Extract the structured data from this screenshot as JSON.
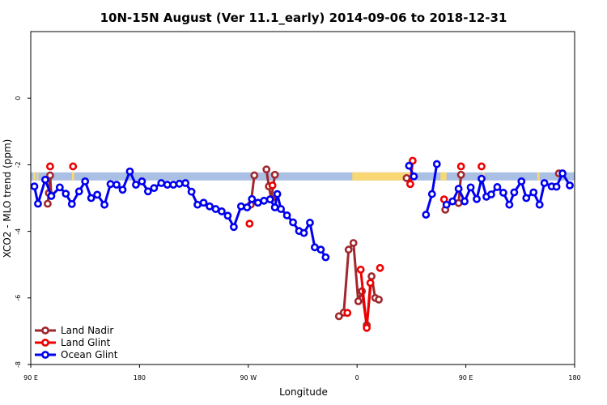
{
  "chart_data": {
    "type": "line",
    "title": "10N-15N August (Ver 11.1_early)   2014-09-06 to 2018-12-31",
    "xlabel": "Longitude",
    "ylabel": "XCO2 - MLO trend (ppm)",
    "x_ticks": [
      {
        "value": 90,
        "label": "90 E"
      },
      {
        "value": 180,
        "label": "180"
      },
      {
        "value": 270,
        "label": "90 W"
      },
      {
        "value": 360,
        "label": "0"
      },
      {
        "value": 450,
        "label": "90 E"
      },
      {
        "value": 540,
        "label": "180"
      }
    ],
    "y_ticks": [
      {
        "value": 0,
        "label": "0"
      },
      {
        "value": -2,
        "label": "-2"
      },
      {
        "value": -4,
        "label": "-4"
      },
      {
        "value": -6,
        "label": "-6"
      },
      {
        "value": -8,
        "label": "-8"
      }
    ],
    "xlim": [
      90,
      540
    ],
    "ylim": [
      -8,
      2
    ],
    "grid": false,
    "legend_position": "bottom-left",
    "band": {
      "y": -2.35,
      "base_color": "#a9bfe3",
      "land_color": "#f8d774",
      "land_segments": [
        [
          92,
          94
        ],
        [
          95,
          96
        ],
        [
          124,
          126
        ],
        [
          356,
          406
        ],
        [
          429,
          434
        ],
        [
          464,
          465
        ],
        [
          509,
          511
        ]
      ]
    },
    "series": [
      {
        "name": "Land Nadir",
        "color": "#a0282d",
        "segments": [
          [
            [
              104,
              -3.17
            ],
            [
              105,
              -2.85
            ],
            [
              106,
              -2.32
            ],
            [
              107,
              -2.93
            ]
          ],
          [
            [
              272,
              -3.2
            ],
            [
              275,
              -2.32
            ]
          ],
          [
            [
              285,
              -2.14
            ],
            [
              287,
              -2.65
            ],
            [
              289,
              -3.02
            ],
            [
              292,
              -2.3
            ]
          ],
          [
            [
              345,
              -6.55
            ],
            [
              349,
              -6.44
            ],
            [
              353,
              -4.55
            ],
            [
              357,
              -4.35
            ],
            [
              361,
              -6.1
            ],
            [
              364,
              -5.8
            ],
            [
              368,
              -6.82
            ],
            [
              372,
              -5.35
            ],
            [
              375,
              -6.0
            ],
            [
              378,
              -6.05
            ]
          ],
          [
            [
              401,
              -2.4
            ]
          ],
          [
            [
              433,
              -3.35
            ]
          ],
          [
            [
              444,
              -3.15
            ],
            [
              446,
              -2.3
            ]
          ],
          [
            [
              527,
              -2.26
            ]
          ]
        ]
      },
      {
        "name": "Land Glint",
        "color": "#ee0000",
        "segments": [
          [
            [
              106,
              -2.05
            ]
          ],
          [
            [
              125,
              -2.05
            ]
          ],
          [
            [
              271,
              -3.77
            ]
          ],
          [
            [
              290,
              -2.62
            ]
          ],
          [
            [
              352,
              -6.45
            ]
          ],
          [
            [
              363,
              -5.15
            ],
            [
              368,
              -6.9
            ],
            [
              371,
              -5.55
            ]
          ],
          [
            [
              379,
              -5.1
            ]
          ],
          [
            [
              404,
              -2.58
            ],
            [
              406,
              -1.88
            ]
          ],
          [
            [
              432,
              -3.04
            ]
          ],
          [
            [
              446,
              -2.05
            ]
          ],
          [
            [
              463,
              -2.05
            ]
          ]
        ]
      },
      {
        "name": "Ocean Glint",
        "color": "#0000ee",
        "segments": [
          [
            [
              93,
              -2.65
            ],
            [
              96,
              -3.17
            ],
            [
              102,
              -2.45
            ],
            [
              107,
              -2.94
            ],
            [
              114,
              -2.68
            ],
            [
              119,
              -2.87
            ],
            [
              124,
              -3.18
            ],
            [
              130,
              -2.8
            ],
            [
              135,
              -2.5
            ],
            [
              140,
              -3.0
            ],
            [
              145,
              -2.9
            ],
            [
              151,
              -3.2
            ],
            [
              156,
              -2.58
            ],
            [
              161,
              -2.6
            ],
            [
              166,
              -2.75
            ],
            [
              172,
              -2.2
            ],
            [
              177,
              -2.6
            ],
            [
              182,
              -2.5
            ],
            [
              187,
              -2.8
            ],
            [
              192,
              -2.7
            ],
            [
              198,
              -2.55
            ],
            [
              203,
              -2.6
            ],
            [
              208,
              -2.6
            ],
            [
              213,
              -2.57
            ],
            [
              218,
              -2.55
            ],
            [
              223,
              -2.81
            ],
            [
              228,
              -3.2
            ],
            [
              233,
              -3.14
            ],
            [
              238,
              -3.25
            ],
            [
              243,
              -3.33
            ],
            [
              248,
              -3.4
            ],
            [
              253,
              -3.53
            ],
            [
              258,
              -3.87
            ],
            [
              264,
              -3.25
            ],
            [
              269,
              -3.28
            ],
            [
              273,
              -3.03
            ],
            [
              278,
              -3.14
            ],
            [
              283,
              -3.08
            ],
            [
              288,
              -3.04
            ],
            [
              292,
              -3.28
            ],
            [
              294,
              -2.88
            ],
            [
              297,
              -3.33
            ],
            [
              302,
              -3.52
            ],
            [
              307,
              -3.73
            ],
            [
              312,
              -3.99
            ],
            [
              316,
              -4.05
            ],
            [
              321,
              -3.74
            ],
            [
              325,
              -4.48
            ],
            [
              330,
              -4.55
            ],
            [
              334,
              -4.78
            ]
          ],
          [
            [
              403,
              -2.03
            ],
            [
              407,
              -2.35
            ]
          ],
          [
            [
              417,
              -3.5
            ],
            [
              422,
              -2.88
            ],
            [
              426,
              -1.98
            ]
          ],
          [
            [
              434,
              -3.2
            ],
            [
              439,
              -3.1
            ],
            [
              444,
              -2.72
            ],
            [
              449,
              -3.1
            ],
            [
              454,
              -2.68
            ],
            [
              459,
              -3.03
            ],
            [
              463,
              -2.42
            ],
            [
              467,
              -2.96
            ],
            [
              471,
              -2.89
            ],
            [
              476,
              -2.67
            ],
            [
              481,
              -2.84
            ],
            [
              486,
              -3.2
            ],
            [
              490,
              -2.83
            ],
            [
              496,
              -2.5
            ],
            [
              500,
              -3.0
            ],
            [
              506,
              -2.83
            ],
            [
              511,
              -3.2
            ],
            [
              515,
              -2.55
            ],
            [
              521,
              -2.65
            ],
            [
              525,
              -2.66
            ],
            [
              530,
              -2.26
            ],
            [
              536,
              -2.62
            ]
          ]
        ]
      }
    ]
  }
}
